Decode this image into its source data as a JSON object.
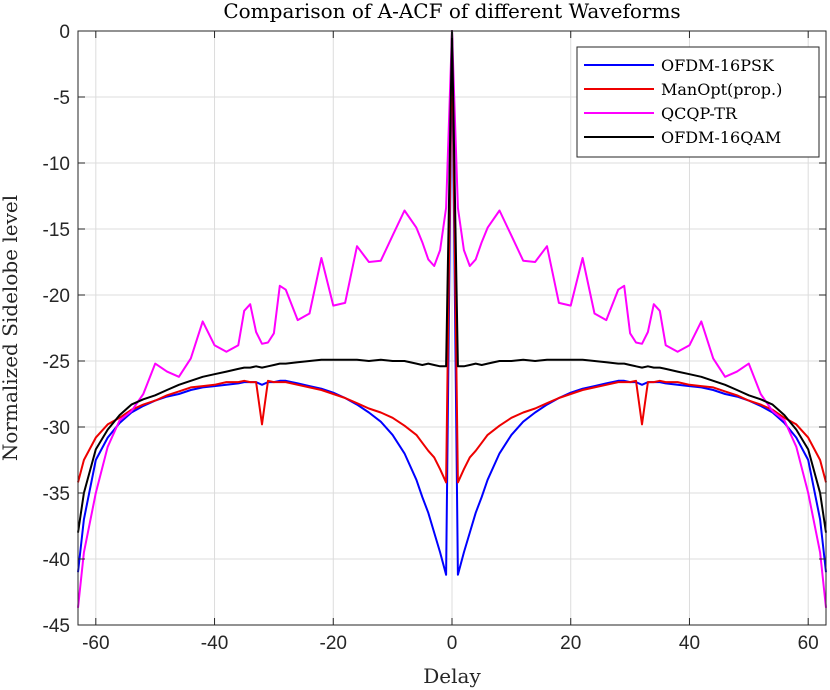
{
  "chart_data": {
    "type": "line",
    "title": "Comparison of A-ACF of different Waveforms",
    "xlabel": "Delay",
    "ylabel": "Normalized Sidelobe level",
    "xlim": [
      -63,
      63
    ],
    "ylim": [
      -45,
      0
    ],
    "xticks": [
      -60,
      -40,
      -20,
      0,
      20,
      40,
      60
    ],
    "yticks": [
      0,
      -5,
      -10,
      -15,
      -20,
      -25,
      -30,
      -35,
      -40,
      -45
    ],
    "grid": true,
    "legend_position": "top-right",
    "x": [
      -63,
      -62,
      -60,
      -58,
      -56,
      -54,
      -52,
      -50,
      -48,
      -46,
      -44,
      -42,
      -40,
      -38,
      -36,
      -35,
      -34,
      -33,
      -32,
      -31,
      -30,
      -29,
      -28,
      -26,
      -24,
      -22,
      -20,
      -18,
      -16,
      -14,
      -12,
      -10,
      -8,
      -6,
      -5,
      -4,
      -3,
      -2,
      -1,
      0,
      1,
      2,
      3,
      4,
      5,
      6,
      8,
      10,
      12,
      14,
      16,
      18,
      20,
      22,
      24,
      26,
      28,
      29,
      30,
      31,
      32,
      33,
      34,
      35,
      36,
      38,
      40,
      42,
      44,
      46,
      48,
      50,
      52,
      54,
      56,
      58,
      60,
      62,
      63
    ],
    "series": [
      {
        "name": "OFDM-16PSK",
        "color": "#0000ff",
        "values": [
          -41,
          -37,
          -32.5,
          -30.8,
          -29.7,
          -28.9,
          -28.4,
          -28.0,
          -27.7,
          -27.5,
          -27.2,
          -27.0,
          -26.9,
          -26.8,
          -26.7,
          -26.6,
          -26.6,
          -26.6,
          -26.8,
          -26.6,
          -26.6,
          -26.5,
          -26.5,
          -26.7,
          -26.9,
          -27.1,
          -27.4,
          -27.8,
          -28.3,
          -28.9,
          -29.6,
          -30.6,
          -32.0,
          -34.0,
          -35.3,
          -36.5,
          -38.0,
          -39.5,
          -41.2,
          0,
          -41.2,
          -39.5,
          -38.0,
          -36.5,
          -35.3,
          -34.0,
          -32.0,
          -30.6,
          -29.6,
          -28.9,
          -28.3,
          -27.8,
          -27.4,
          -27.1,
          -26.9,
          -26.7,
          -26.5,
          -26.5,
          -26.6,
          -26.6,
          -26.8,
          -26.6,
          -26.6,
          -26.6,
          -26.7,
          -26.8,
          -26.9,
          -27.0,
          -27.2,
          -27.5,
          -27.7,
          -28.0,
          -28.4,
          -28.9,
          -29.7,
          -30.8,
          -32.5,
          -37,
          -41
        ]
      },
      {
        "name": "ManOpt(prop.)",
        "color": "#ee0000",
        "values": [
          -34.2,
          -32.5,
          -30.8,
          -29.8,
          -29.3,
          -28.7,
          -28.3,
          -28.0,
          -27.6,
          -27.3,
          -27.0,
          -26.9,
          -26.8,
          -26.6,
          -26.6,
          -26.5,
          -26.6,
          -26.6,
          -29.8,
          -26.5,
          -26.6,
          -26.6,
          -26.6,
          -26.8,
          -27.0,
          -27.2,
          -27.5,
          -27.8,
          -28.2,
          -28.6,
          -28.9,
          -29.3,
          -29.9,
          -30.6,
          -31.2,
          -31.8,
          -32.3,
          -33.2,
          -34.2,
          0,
          -34.2,
          -33.2,
          -32.3,
          -31.8,
          -31.2,
          -30.6,
          -29.9,
          -29.3,
          -28.9,
          -28.6,
          -28.2,
          -27.8,
          -27.5,
          -27.2,
          -27.0,
          -26.8,
          -26.6,
          -26.6,
          -26.6,
          -26.5,
          -29.8,
          -26.6,
          -26.6,
          -26.5,
          -26.6,
          -26.6,
          -26.8,
          -26.9,
          -27.0,
          -27.3,
          -27.6,
          -28.0,
          -28.3,
          -28.7,
          -29.3,
          -29.8,
          -30.8,
          -32.5,
          -34.2
        ]
      },
      {
        "name": "QCQP-TR",
        "color": "#ff00ff",
        "values": [
          -43.7,
          -39.5,
          -35.0,
          -31.5,
          -29.5,
          -28.8,
          -27.5,
          -25.2,
          -25.8,
          -26.2,
          -24.8,
          -22.0,
          -23.8,
          -24.3,
          -23.8,
          -21.2,
          -20.7,
          -22.8,
          -23.7,
          -23.6,
          -22.9,
          -19.3,
          -19.6,
          -21.9,
          -21.4,
          -17.2,
          -20.8,
          -20.6,
          -16.3,
          -17.5,
          -17.4,
          -15.5,
          -13.6,
          -14.9,
          -16.0,
          -17.3,
          -17.8,
          -16.6,
          -13.4,
          0,
          -13.4,
          -16.6,
          -17.8,
          -17.3,
          -16.0,
          -14.9,
          -13.6,
          -15.5,
          -17.4,
          -17.5,
          -16.3,
          -20.6,
          -20.8,
          -17.2,
          -21.4,
          -21.9,
          -19.6,
          -19.3,
          -22.9,
          -23.6,
          -23.7,
          -22.8,
          -20.7,
          -21.2,
          -23.8,
          -24.3,
          -23.8,
          -22.0,
          -24.8,
          -26.2,
          -25.8,
          -25.2,
          -27.5,
          -28.8,
          -29.5,
          -31.5,
          -35.0,
          -39.5,
          -43.7
        ]
      },
      {
        "name": "OFDM-16QAM",
        "color": "#000000",
        "values": [
          -38.0,
          -35.0,
          -31.7,
          -30.2,
          -29.1,
          -28.3,
          -27.9,
          -27.6,
          -27.2,
          -26.8,
          -26.5,
          -26.2,
          -26.0,
          -25.8,
          -25.6,
          -25.5,
          -25.5,
          -25.4,
          -25.5,
          -25.4,
          -25.3,
          -25.2,
          -25.2,
          -25.1,
          -25.0,
          -24.9,
          -24.9,
          -24.9,
          -24.9,
          -25.0,
          -24.9,
          -25.0,
          -25.0,
          -25.2,
          -25.3,
          -25.2,
          -25.3,
          -25.4,
          -25.4,
          0,
          -25.4,
          -25.4,
          -25.3,
          -25.2,
          -25.3,
          -25.2,
          -25.0,
          -25.0,
          -24.9,
          -25.0,
          -24.9,
          -24.9,
          -24.9,
          -24.9,
          -25.0,
          -25.1,
          -25.2,
          -25.2,
          -25.3,
          -25.4,
          -25.5,
          -25.4,
          -25.5,
          -25.5,
          -25.6,
          -25.8,
          -26.0,
          -26.2,
          -26.5,
          -26.8,
          -27.2,
          -27.6,
          -27.9,
          -28.3,
          -29.1,
          -30.2,
          -31.7,
          -35.0,
          -38.0
        ]
      }
    ]
  }
}
